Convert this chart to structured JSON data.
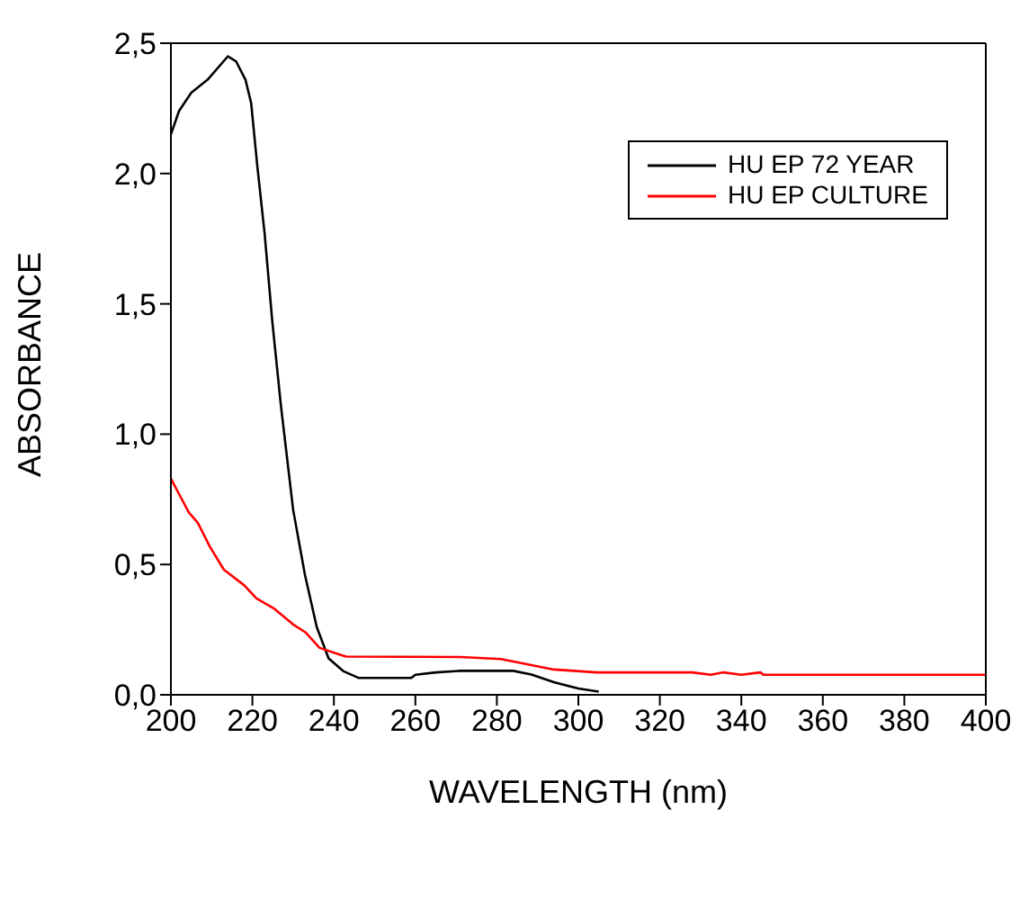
{
  "chart_data": {
    "type": "line",
    "xlabel": "WAVELENGTH (nm)",
    "ylabel": "ABSORBANCE",
    "xlim": [
      200,
      400
    ],
    "xticks": [
      200,
      220,
      240,
      260,
      280,
      300,
      320,
      340,
      360,
      380,
      400
    ],
    "ylim": [
      0,
      2.5
    ],
    "yticks": [
      {
        "value": 0,
        "label": "0,0"
      },
      {
        "value": 0.5,
        "label": "0,5"
      },
      {
        "value": 1,
        "label": "1,0"
      },
      {
        "value": 1.5,
        "label": "1,5"
      },
      {
        "value": 2,
        "label": "2,0"
      },
      {
        "value": 2.5,
        "label": "2,5"
      }
    ],
    "grid": false,
    "legend": "top right",
    "marker": "none",
    "line_style": "solid",
    "series": [
      {
        "name": "HU EP 72 YEAR",
        "color": "#000000",
        "x": [
          200,
          202,
          205,
          209,
          214,
          216,
          218.3,
          219.7,
          221.2,
          223,
          224.9,
          227,
          230,
          232.9,
          235.8,
          238.7,
          242.4,
          246,
          259,
          260,
          265,
          271,
          284,
          288.5,
          294,
          300,
          305
        ],
        "values": [
          2.15,
          2.24,
          2.31,
          2.36,
          2.45,
          2.43,
          2.36,
          2.27,
          2.03,
          1.77,
          1.43,
          1.11,
          0.71,
          0.46,
          0.26,
          0.14,
          0.09,
          0.065,
          0.065,
          0.077,
          0.086,
          0.092,
          0.092,
          0.078,
          0.048,
          0.024,
          0.012
        ]
      },
      {
        "name": "HU EP CULTURE",
        "color": "#ff0000",
        "x": [
          200,
          202,
          204.4,
          206.6,
          209.5,
          213,
          218,
          221,
          225.4,
          230,
          233,
          236.5,
          241.7,
          243,
          271,
          281,
          286.8,
          294,
          304.5,
          328,
          332.5,
          335.6,
          340,
          344.7,
          345.4,
          400
        ],
        "values": [
          0.83,
          0.77,
          0.7,
          0.66,
          0.57,
          0.48,
          0.42,
          0.37,
          0.33,
          0.27,
          0.24,
          0.18,
          0.153,
          0.147,
          0.145,
          0.137,
          0.119,
          0.097,
          0.086,
          0.086,
          0.077,
          0.086,
          0.077,
          0.086,
          0.077,
          0.077
        ]
      }
    ]
  }
}
